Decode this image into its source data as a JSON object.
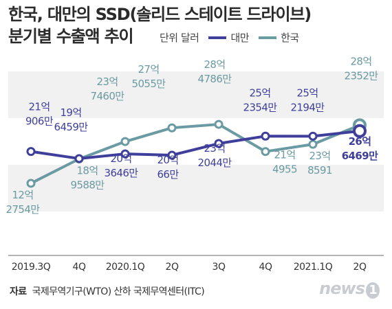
{
  "header": {
    "title_line1": "한국, 대만의 SSD(솔리드 스테이트 드라이브)",
    "title_line2": "분기별 수출액 추이",
    "unit": "단위 달러"
  },
  "legend": [
    {
      "label": "대만",
      "color": "#3f3f9b"
    },
    {
      "label": "한국",
      "color": "#6a9aa2"
    }
  ],
  "source": {
    "label": "자료",
    "text": "국제무역기구(WTO) 산하 국제무역센터(ITC)"
  },
  "logo": {
    "text": "news",
    "mark": "1"
  },
  "chart_data": {
    "type": "line",
    "categories": [
      "2019.3Q",
      "4Q",
      "2020.1Q",
      "2Q",
      "3Q",
      "4Q",
      "2021.1Q",
      "2Q"
    ],
    "ylabel": "",
    "series": [
      {
        "name": "대만",
        "color": "#3f3f9b",
        "values": [
          2100906000,
          1906459000,
          2036460000,
          2000660000,
          2320440000,
          2523540000,
          2521940000,
          2664690000
        ],
        "labels": [
          [
            "21억",
            "906만"
          ],
          [
            "19억",
            "6459만"
          ],
          [
            "20억",
            "3646만"
          ],
          [
            "20억",
            "66만"
          ],
          [
            "23억",
            "2044만"
          ],
          [
            "25억",
            "2354만"
          ],
          [
            "25억",
            "2194만"
          ],
          [
            "26억",
            "6469만"
          ]
        ]
      },
      {
        "name": "한국",
        "color": "#6a9aa2",
        "values": [
          1227540000,
          1895880000,
          2374600000,
          2750550000,
          2847860000,
          2100004955,
          2300008591,
          2823520000
        ],
        "labels": [
          [
            "12억",
            "2754만"
          ],
          [
            "18억",
            "9588만"
          ],
          [
            "23억",
            "7460만"
          ],
          [
            "27억",
            "5055만"
          ],
          [
            "28억",
            "4786만"
          ],
          [
            "21억",
            "4955"
          ],
          [
            "23억",
            "8591"
          ],
          [
            "28억",
            "2352만"
          ]
        ]
      }
    ]
  }
}
